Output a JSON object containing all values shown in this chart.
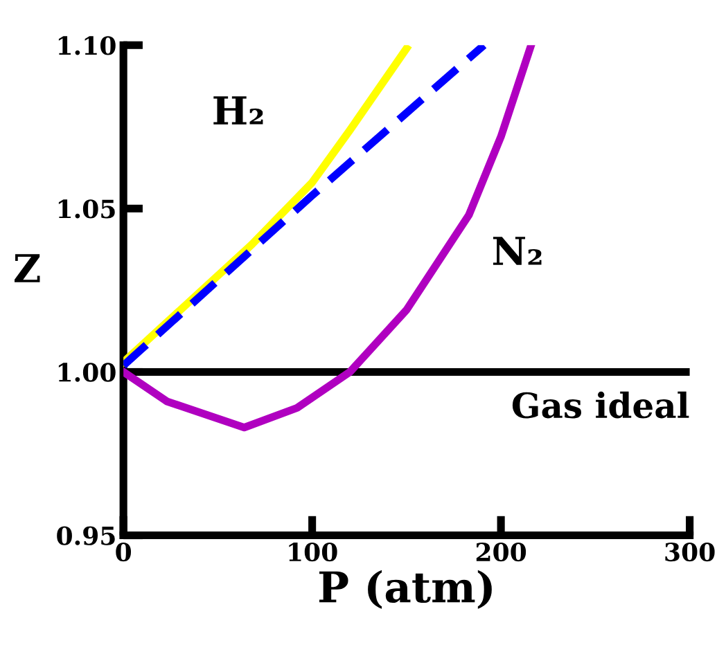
{
  "chart_data": {
    "type": "line",
    "xlabel": "P (atm)",
    "ylabel": "Z",
    "series": [
      {
        "name": "H₂",
        "color": "#ffff00",
        "line_style": "solid",
        "x": [
          0,
          68,
          100,
          120,
          150
        ],
        "values": [
          1.003,
          1.039,
          1.058,
          1.074,
          1.099
        ]
      },
      {
        "color": "#0000ff",
        "line_style": "dashed",
        "x": [
          0,
          100,
          191
        ],
        "values": [
          1.002,
          1.054,
          1.1
        ]
      },
      {
        "name": "N₂",
        "color": "#b000c0",
        "line_style": "solid",
        "x": [
          0,
          23,
          64,
          92,
          120,
          150,
          183,
          200,
          216
        ],
        "values": [
          1.0,
          0.991,
          0.983,
          0.989,
          1.0,
          1.019,
          1.048,
          1.072,
          1.1
        ]
      }
    ],
    "ref_lines": [
      {
        "axis": "y",
        "value": 1.0,
        "label": "Gas ideal",
        "color": "#000000",
        "line_style": "solid"
      }
    ],
    "xlim": [
      0,
      300
    ],
    "ylim": [
      0.95,
      1.1
    ],
    "xticks": [
      0,
      100,
      200,
      300
    ],
    "yticks": [
      {
        "value": 0.95,
        "label": "0.95"
      },
      {
        "value": 1.0,
        "label": "1.00"
      },
      {
        "value": 1.05,
        "label": "1.05"
      },
      {
        "value": 1.1,
        "label": "1.10"
      }
    ],
    "grid": false,
    "legend": false,
    "marker": "none"
  }
}
